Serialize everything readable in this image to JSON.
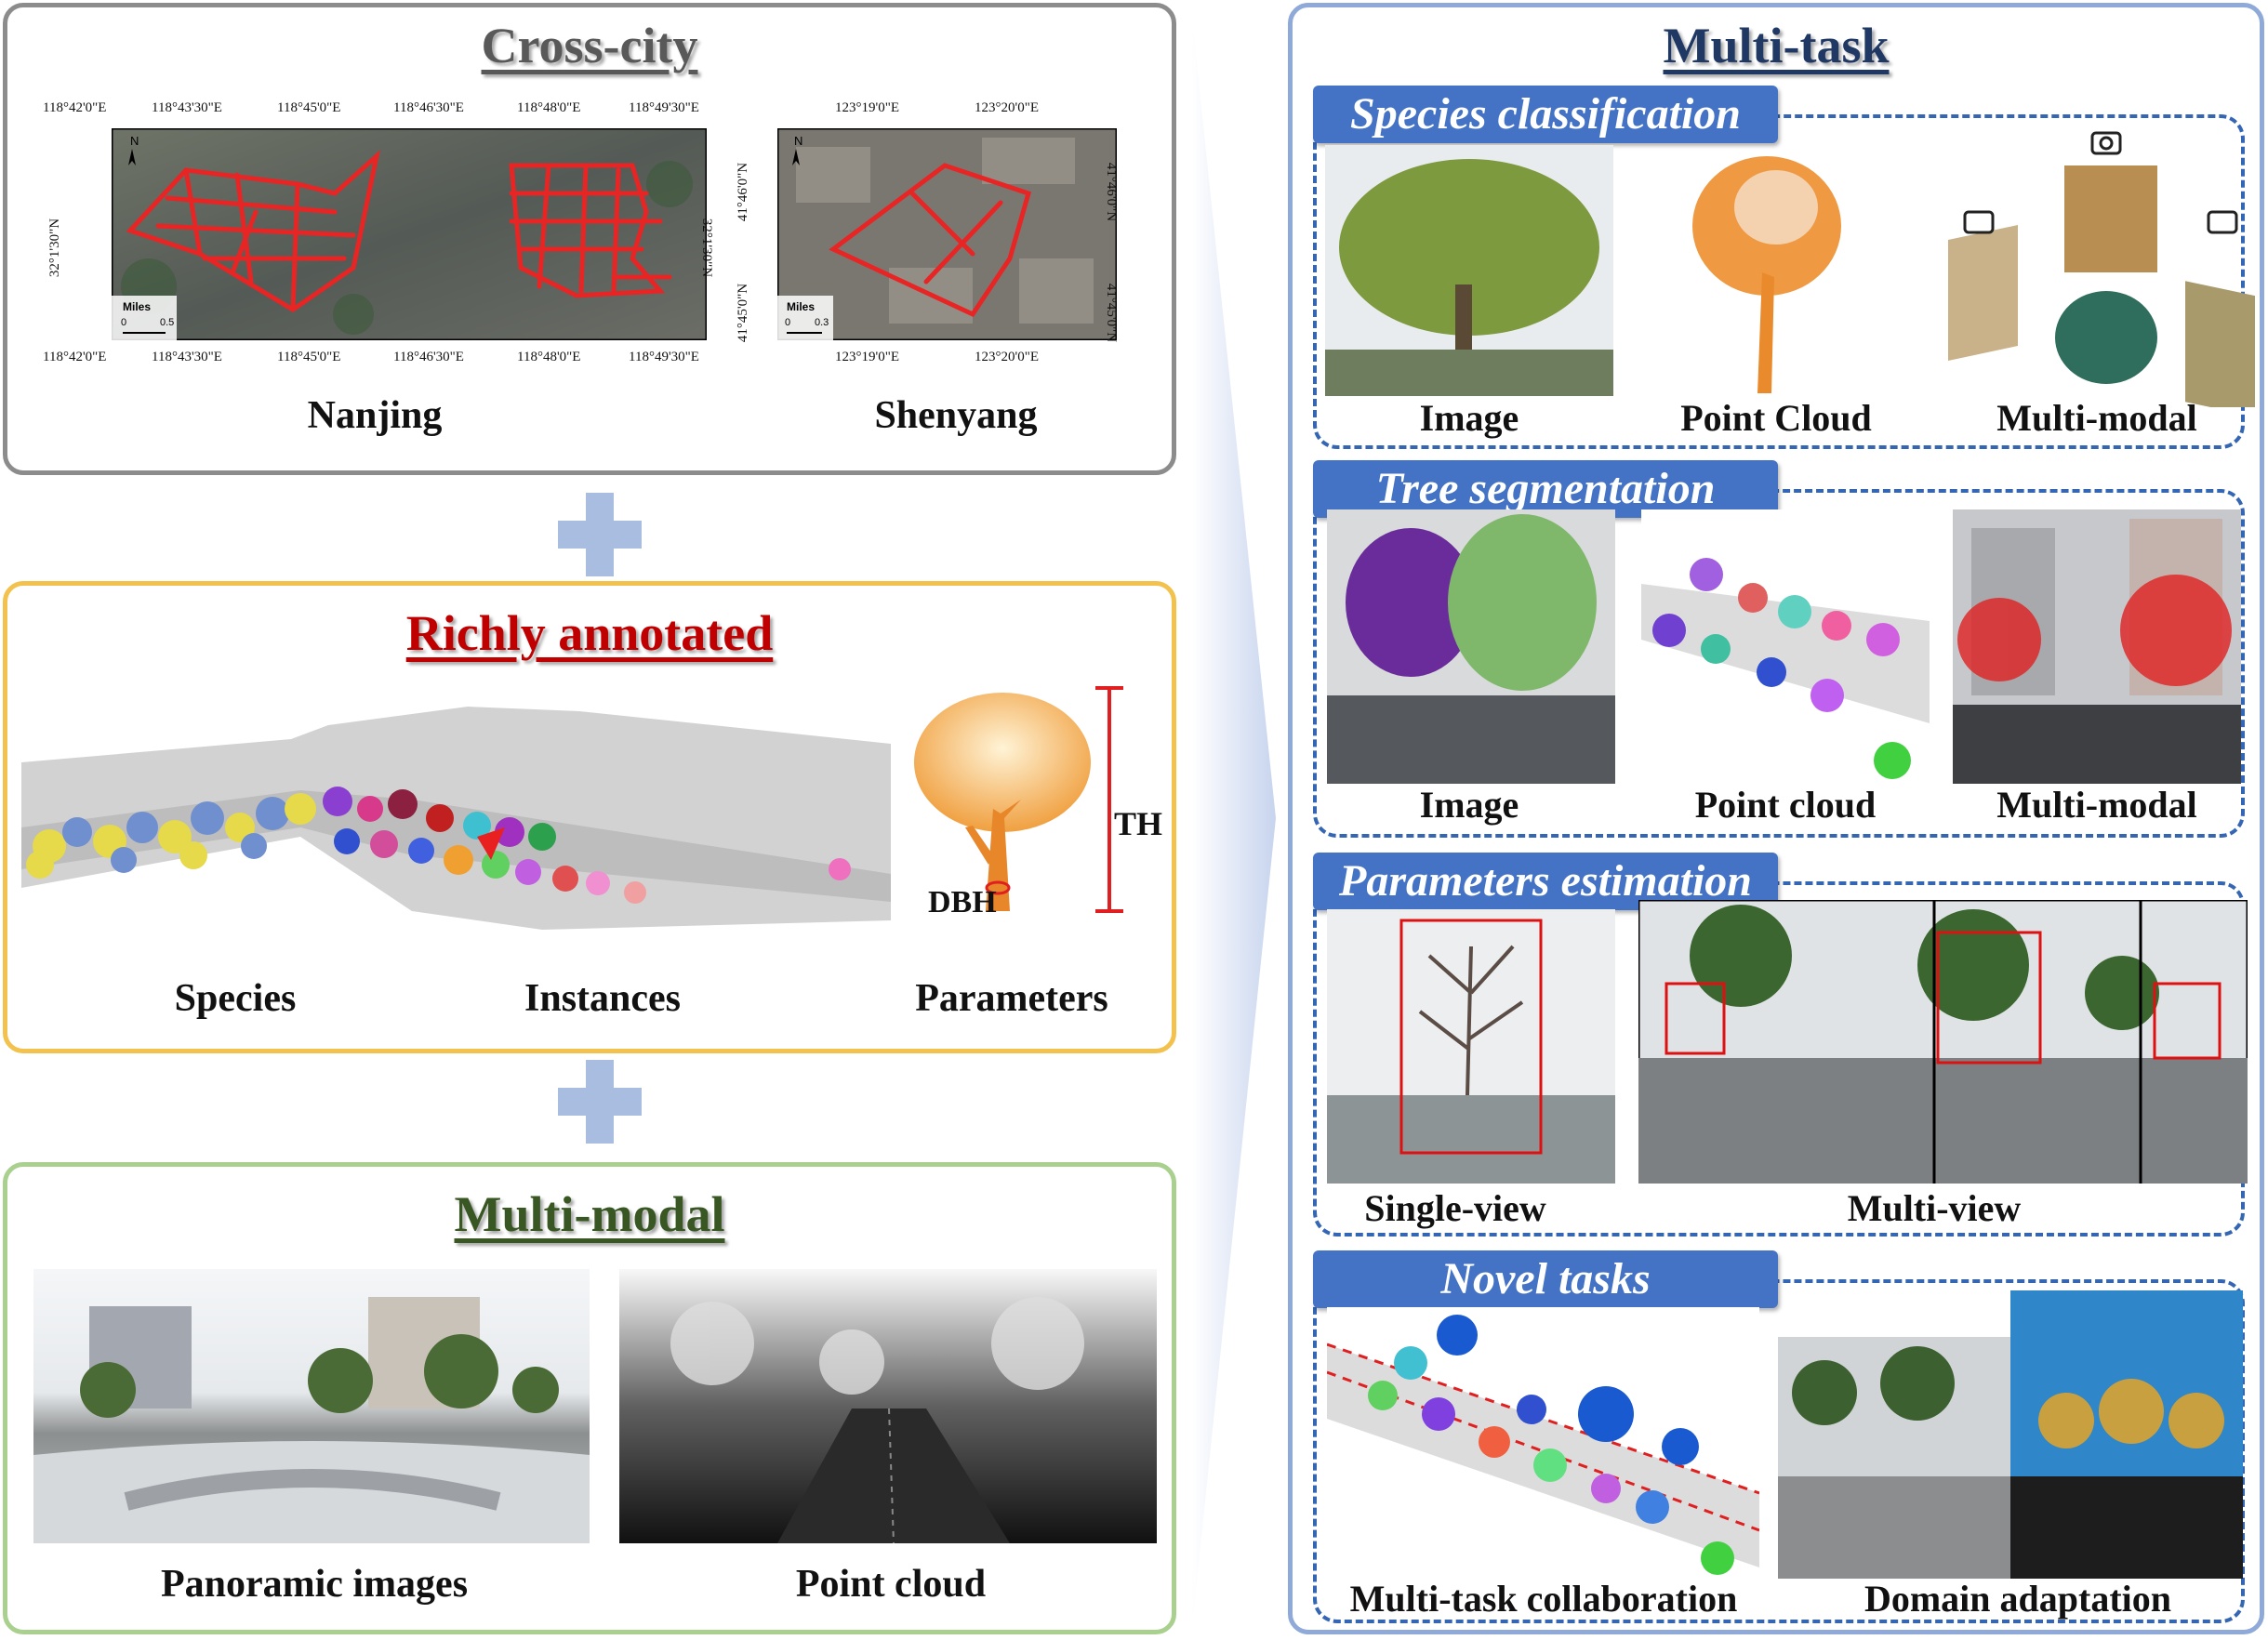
{
  "cross_city": {
    "title": "Cross-city",
    "nanjing": {
      "caption": "Nanjing",
      "top_ticks": [
        "118°42'0\"E",
        "118°43'30\"E",
        "118°45'0\"E",
        "118°46'30\"E",
        "118°48'0\"E",
        "118°49'30\"E"
      ],
      "bottom_ticks": [
        "118°42'0\"E",
        "118°43'30\"E",
        "118°45'0\"E",
        "118°46'30\"E",
        "118°48'0\"E",
        "118°49'30\"E"
      ],
      "left_tick": "32°1'30\"N",
      "right_tick": "32°1'30\"N",
      "north": "N",
      "scale_title": "Miles",
      "scale_0": "0",
      "scale_1": "0.5"
    },
    "shenyang": {
      "caption": "Shenyang",
      "top_ticks": [
        "123°19'0\"E",
        "123°20'0\"E"
      ],
      "bottom_ticks": [
        "123°19'0\"E",
        "123°20'0\"E"
      ],
      "left_ticks": [
        "41°46'0\"N",
        "41°45'0\"N"
      ],
      "right_ticks": [
        "41°46'0\"N",
        "41°45'0\"N"
      ],
      "north": "N",
      "scale_title": "Miles",
      "scale_0": "0",
      "scale_1": "0.3"
    }
  },
  "richly_annotated": {
    "title": "Richly annotated",
    "captions": [
      "Species",
      "Instances",
      "Parameters"
    ],
    "th_label": "TH",
    "dbh_label": "DBH"
  },
  "multi_modal": {
    "title": "Multi-modal",
    "captions": [
      "Panoramic images",
      "Point cloud"
    ]
  },
  "multi_task": {
    "title": "Multi-task",
    "species_classification": {
      "tab": "Species classification",
      "captions": [
        "Image",
        "Point Cloud",
        "Multi-modal"
      ]
    },
    "tree_segmentation": {
      "tab": "Tree segmentation",
      "captions": [
        "Image",
        "Point cloud",
        "Multi-modal"
      ]
    },
    "parameters_estimation": {
      "tab": "Parameters estimation",
      "captions": [
        "Single-view",
        "Multi-view"
      ]
    },
    "novel_tasks": {
      "tab": "Novel tasks",
      "captions": [
        "Multi-task collaboration",
        "Domain adaptation"
      ]
    }
  },
  "colors": {
    "cross_city_border": "#8c8c8c",
    "richly_border": "#f2c14e",
    "multimodal_border": "#a9d08e",
    "multitask_border": "#8fa9d9",
    "tab_blue": "#4472c4",
    "richly_title": "#c00000",
    "multimodal_title": "#385723",
    "multitask_title": "#1f3864"
  }
}
